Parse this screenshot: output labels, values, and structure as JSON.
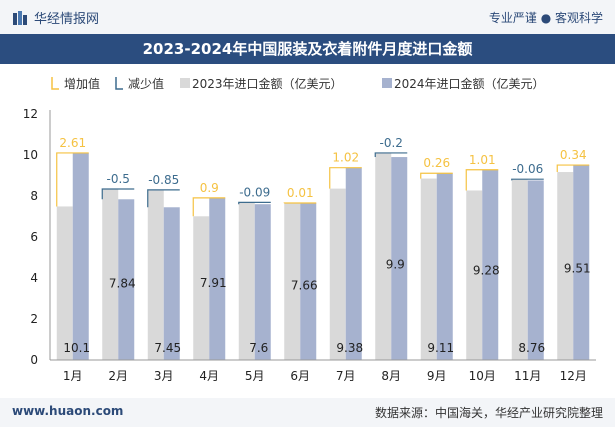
{
  "header": {
    "brand": "华经情报网",
    "slogan": "专业严谨 ● 客观科学"
  },
  "footer": {
    "website": "www.huaon.com",
    "source": "数据来源：中国海关，华经产业研究院整理"
  },
  "colors": {
    "increase": "#f5c242",
    "decrease": "#3d6c8e",
    "bar2023": "#d9d9d9",
    "bar2024": "#a6b2cf",
    "title_bg": "#2b4d7f"
  },
  "chart_data": {
    "type": "bar",
    "title": "2023-2024年中国服装及衣着附件月度进口金额",
    "legend": [
      "增加值",
      "减少值",
      "2023年进口金额（亿美元）",
      "2024年进口金额（亿美元）"
    ],
    "legend_position": "top-left",
    "categories": [
      "1月",
      "2月",
      "3月",
      "4月",
      "5月",
      "6月",
      "7月",
      "8月",
      "9月",
      "10月",
      "11月",
      "12月"
    ],
    "series": [
      {
        "name": "2023年进口金额（亿美元）",
        "values": [
          7.49,
          8.34,
          8.3,
          7.01,
          7.69,
          7.65,
          8.36,
          10.1,
          8.85,
          8.27,
          8.82,
          9.17
        ]
      },
      {
        "name": "2024年进口金额（亿美元）",
        "values": [
          10.1,
          7.84,
          7.45,
          7.91,
          7.6,
          7.66,
          9.38,
          9.9,
          9.11,
          9.28,
          8.76,
          9.51
        ]
      }
    ],
    "diff_labels": [
      "2.61",
      "-0.5",
      "-0.85",
      "0.9",
      "-0.09",
      "0.01",
      "1.02",
      "-0.2",
      "0.26",
      "1.01",
      "-0.06",
      "0.34"
    ],
    "yticks": [
      0,
      2,
      4,
      6,
      8,
      10,
      12
    ],
    "ylim": [
      0,
      12
    ],
    "grid": false
  }
}
